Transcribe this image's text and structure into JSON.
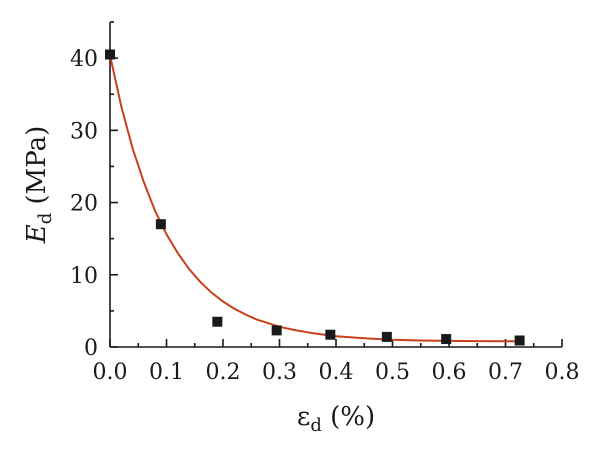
{
  "chart_data": {
    "type": "scatter",
    "title": "",
    "xlabel": {
      "base": "ε",
      "sub": "d",
      "rest": " (%)"
    },
    "ylabel": {
      "base": "E",
      "sub": "d",
      "rest": " (MPa)"
    },
    "xlim": [
      0,
      0.8
    ],
    "ylim": [
      0,
      45
    ],
    "xticks": [
      0.0,
      0.1,
      0.2,
      0.3,
      0.4,
      0.5,
      0.6,
      0.7,
      0.8
    ],
    "xtick_labels": [
      "0.0",
      "0.1",
      "0.2",
      "0.3",
      "0.4",
      "0.5",
      "0.6",
      "0.7",
      "0.8"
    ],
    "yticks": [
      0,
      10,
      20,
      30,
      40
    ],
    "ytick_labels": [
      "0",
      "10",
      "20",
      "30",
      "40"
    ],
    "grid": false,
    "legend": "none",
    "series": [
      {
        "kind": "points",
        "x": [
          0.0,
          0.09,
          0.19,
          0.295,
          0.39,
          0.49,
          0.595,
          0.725
        ],
        "y": [
          40.5,
          17.0,
          3.5,
          2.3,
          1.7,
          1.4,
          1.1,
          0.9
        ],
        "color": "#1a1a1a",
        "marker": "square"
      },
      {
        "kind": "fit",
        "x": [
          0.0,
          0.02,
          0.04,
          0.06,
          0.08,
          0.1,
          0.12,
          0.14,
          0.16,
          0.18,
          0.2,
          0.22,
          0.24,
          0.26,
          0.28,
          0.3,
          0.33,
          0.36,
          0.4,
          0.45,
          0.5,
          0.55,
          0.6,
          0.65,
          0.7,
          0.73
        ],
        "y": [
          40.4,
          33.3,
          27.5,
          22.8,
          18.8,
          15.6,
          13.0,
          10.8,
          9.0,
          7.5,
          6.3,
          5.3,
          4.5,
          3.8,
          3.3,
          2.8,
          2.3,
          1.9,
          1.5,
          1.2,
          1.0,
          0.9,
          0.85,
          0.82,
          0.8,
          0.8
        ],
        "color": "#c8401a"
      }
    ]
  }
}
